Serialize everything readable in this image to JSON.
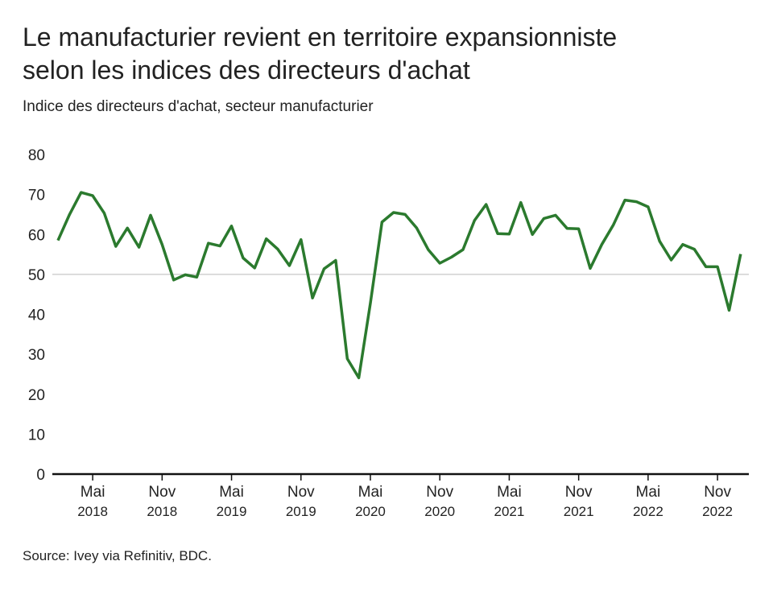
{
  "chart_data": {
    "type": "line",
    "title": [
      "Le manufacturier revient en territoire expansionniste",
      "selon les indices des directeurs d'achat"
    ],
    "subtitle": "Indice des directeurs d'achat, secteur manufacturier",
    "source": "Source: Ivey via Refinitiv, BDC.",
    "categories": [
      null,
      null,
      null,
      [
        "Mai",
        "2018"
      ],
      null,
      null,
      null,
      null,
      null,
      [
        "Nov",
        "2018"
      ],
      null,
      null,
      null,
      null,
      null,
      [
        "Mai",
        "2019"
      ],
      null,
      null,
      null,
      null,
      null,
      [
        "Nov",
        "2019"
      ],
      null,
      null,
      null,
      null,
      null,
      [
        "Mai",
        "2020"
      ],
      null,
      null,
      null,
      null,
      null,
      [
        "Nov",
        "2020"
      ],
      null,
      null,
      null,
      null,
      null,
      [
        "Mai",
        "2021"
      ],
      null,
      null,
      null,
      null,
      null,
      [
        "Nov",
        "2021"
      ],
      null,
      null,
      null,
      null,
      null,
      [
        "Mai",
        "2022"
      ],
      null,
      null,
      null,
      null,
      null,
      [
        "Nov",
        "2022"
      ],
      null,
      null
    ],
    "series": [
      {
        "color": "#2b7a2e",
        "values": [
          58.5,
          65,
          70.5,
          69.7,
          65.3,
          57,
          61.6,
          56.8,
          64.8,
          57.5,
          48.6,
          49.9,
          49.3,
          57.8,
          57.1,
          62.1,
          54.1,
          51.6,
          58.9,
          56.3,
          52.2,
          58.7,
          44.1,
          51.4,
          53.5,
          28.9,
          24.1,
          42.8,
          63.1,
          65.5,
          65,
          61.6,
          56.2,
          52.8,
          54.3,
          56.2,
          63.5,
          67.5,
          60.2,
          60.1,
          68,
          60,
          64,
          64.8,
          61.5,
          61.4,
          51.5,
          57.5,
          62.4,
          68.6,
          68.2,
          66.9,
          58.3,
          53.6,
          57.5,
          56.3,
          51.9,
          51.9,
          41,
          55.1
        ]
      }
    ],
    "ylim": [
      0,
      80
    ],
    "yticks": [
      0,
      10,
      20,
      30,
      40,
      50,
      60,
      70,
      80
    ],
    "reference_line": 50
  }
}
